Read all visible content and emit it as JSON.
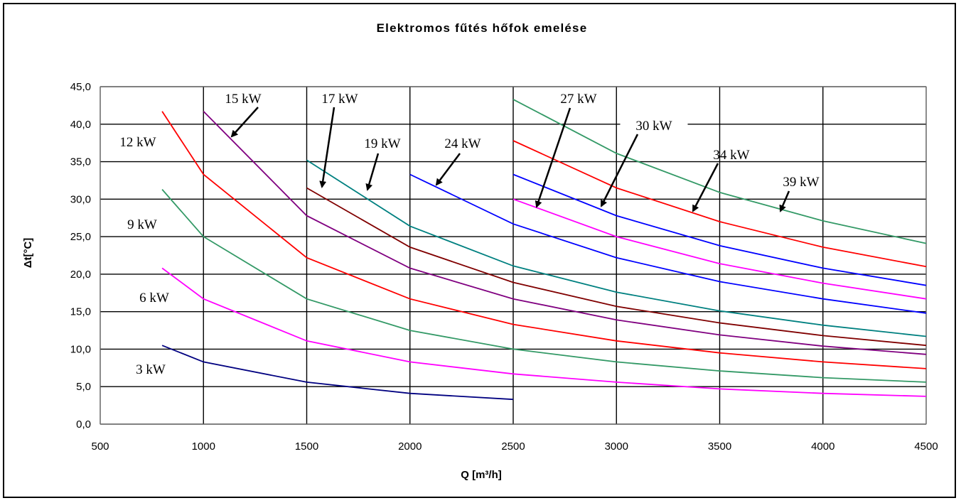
{
  "chart_data": {
    "type": "line",
    "title": "Elektromos fűtés hőfok emelése",
    "xlabel": "Q [m³/h]",
    "ylabel": "Δt[°C]",
    "xlim": [
      500,
      4500
    ],
    "ylim": [
      0,
      45
    ],
    "x_ticks": [
      "500",
      "1000",
      "1500",
      "2000",
      "2500",
      "3000",
      "3500",
      "4000",
      "4500"
    ],
    "y_ticks": [
      "0,0",
      "5,0",
      "10,0",
      "15,0",
      "20,0",
      "25,0",
      "30,0",
      "35,0",
      "40,0",
      "45,0"
    ],
    "grid": true,
    "series": [
      {
        "name": "3 kW",
        "color": "#000080",
        "x": [
          800,
          1000,
          1500,
          2000,
          2500
        ],
        "values": [
          10.5,
          8.3,
          5.6,
          4.1,
          3.3
        ]
      },
      {
        "name": "6 kW",
        "color": "#ff00ff",
        "x": [
          800,
          1000,
          1500,
          2000,
          2500,
          3000,
          3500,
          4000,
          4500
        ],
        "values": [
          20.8,
          16.7,
          11.1,
          8.3,
          6.7,
          5.6,
          4.7,
          4.1,
          3.7
        ]
      },
      {
        "name": "9 kW",
        "color": "#339966",
        "x": [
          800,
          1000,
          1500,
          2000,
          2500,
          3000,
          3500,
          4000,
          4500
        ],
        "values": [
          31.3,
          25.0,
          16.7,
          12.5,
          10.0,
          8.3,
          7.1,
          6.2,
          5.6
        ]
      },
      {
        "name": "12 kW",
        "color": "#ff0000",
        "x": [
          800,
          1000,
          1500,
          2000,
          2500,
          3000,
          3500,
          4000,
          4500
        ],
        "values": [
          41.7,
          33.3,
          22.2,
          16.7,
          13.3,
          11.1,
          9.5,
          8.3,
          7.4
        ]
      },
      {
        "name": "15 kW",
        "color": "#800080",
        "x": [
          1000,
          1500,
          2000,
          2500,
          3000,
          3500,
          4000,
          4500
        ],
        "values": [
          41.7,
          27.8,
          20.8,
          16.7,
          13.9,
          11.9,
          10.4,
          9.3
        ]
      },
      {
        "name": "17 kW",
        "color": "#800000",
        "x": [
          1500,
          2000,
          2500,
          3000,
          3500,
          4000,
          4500
        ],
        "values": [
          31.5,
          23.6,
          18.9,
          15.7,
          13.5,
          11.8,
          10.5
        ]
      },
      {
        "name": "19 kW",
        "color": "#008080",
        "x": [
          1500,
          2000,
          2500,
          3000,
          3500,
          4000,
          4500
        ],
        "values": [
          35.2,
          26.4,
          21.1,
          17.6,
          15.1,
          13.2,
          11.7
        ]
      },
      {
        "name": "24 kW",
        "color": "#0000ff",
        "x": [
          2000,
          2500,
          3000,
          3500,
          4000,
          4500
        ],
        "values": [
          33.3,
          26.7,
          22.2,
          19.0,
          16.7,
          14.8
        ]
      },
      {
        "name": "27 kW",
        "color": "#ff00ff",
        "x": [
          2500,
          3000,
          3500,
          4000,
          4500
        ],
        "values": [
          30.0,
          25.0,
          21.4,
          18.8,
          16.7
        ]
      },
      {
        "name": "30 kW",
        "color": "#0000ff",
        "x": [
          2500,
          3000,
          3500,
          4000,
          4500
        ],
        "values": [
          33.3,
          27.8,
          23.8,
          20.8,
          18.5
        ]
      },
      {
        "name": "34 kW",
        "color": "#ff0000",
        "x": [
          2500,
          3000,
          3500,
          4000,
          4500
        ],
        "values": [
          37.8,
          31.5,
          27.0,
          23.6,
          21.0
        ]
      },
      {
        "name": "39 kW",
        "color": "#339966",
        "x": [
          2500,
          3000,
          3500,
          4000,
          4500
        ],
        "values": [
          43.3,
          36.1,
          30.9,
          27.1,
          24.1
        ]
      }
    ]
  }
}
